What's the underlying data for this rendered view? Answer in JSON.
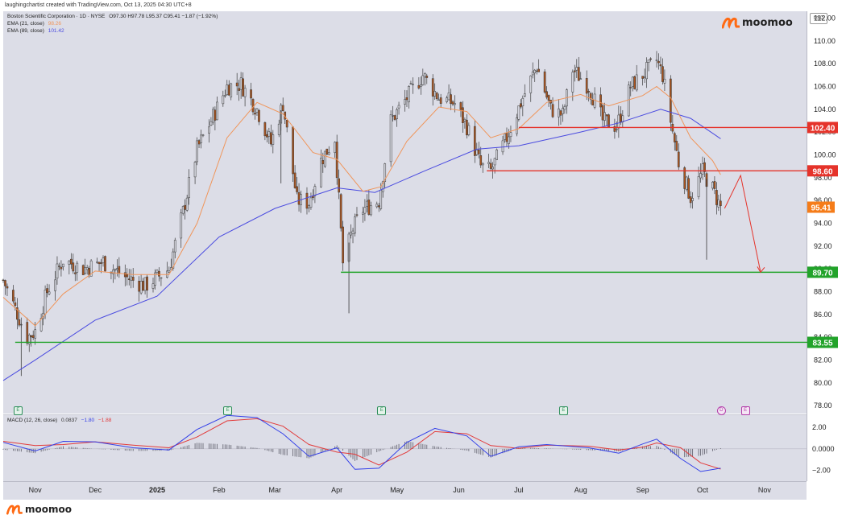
{
  "credit": "laughingchartist created with TradingView.com, Oct 13, 2025 04:30 UTC+8",
  "legend": {
    "symbol": "Boston Scientific Corporation · 1D · NYSE",
    "ohlc": "O97.30 H97.78 L95.37 C95.41 −1.87 (−1.92%)",
    "ema21_label": "EMA (21, close)",
    "ema21_value": "98.26",
    "ema89_label": "EMA (89, close)",
    "ema89_value": "101.42",
    "macd_label": "MACD (12, 26, close)",
    "macd_hist_value": "0.0837",
    "macd_value": "−1.80",
    "macd_signal_value": "−1.88"
  },
  "brand": {
    "name": "moomoo"
  },
  "price_axis": {
    "unit": "USD"
  },
  "colors": {
    "up": "#d6d7e0",
    "down": "#a8541f",
    "wick": "#3a3a3a",
    "ema21": "#f0955a",
    "ema89": "#4a4be0",
    "resistance": "#e5332a",
    "support": "#22a32a",
    "current_price": "#f57c19",
    "macd": "#3440e8",
    "signal": "#e23a3a"
  },
  "events": [
    {
      "label": "E",
      "type": "earnings",
      "x": "2024-10-23"
    },
    {
      "label": "E",
      "type": "earnings",
      "x": "2025-02-05"
    },
    {
      "label": "E",
      "type": "earnings",
      "x": "2025-04-23"
    },
    {
      "label": "E",
      "type": "earnings",
      "x": "2025-07-23"
    },
    {
      "label": "D",
      "type": "dividend",
      "x": "2025-10-10"
    },
    {
      "label": "E",
      "type": "earnings",
      "x": "2025-10-22"
    }
  ],
  "chart_data": [
    {
      "type": "candlestick",
      "title": "Boston Scientific Corporation · 1D · NYSE",
      "xlabel": "",
      "ylabel": "",
      "x_range": [
        "2024-10-16",
        "2025-11-22"
      ],
      "ylim": [
        77.3,
        112.6
      ],
      "y_ticks": [
        "78.00",
        "80.00",
        "82.00",
        "84.00",
        "86.00",
        "88.00",
        "90.00",
        "92.00",
        "94.00",
        "96.00",
        "98.00",
        "100.00",
        "102.00",
        "104.00",
        "106.00",
        "108.00",
        "110.00",
        "112.00"
      ],
      "x_ticks": [
        {
          "label": "Nov",
          "date": "2024-11-01"
        },
        {
          "label": "Dec",
          "date": "2024-12-01"
        },
        {
          "label": "2025",
          "date": "2025-01-01"
        },
        {
          "label": "Feb",
          "date": "2025-02-01"
        },
        {
          "label": "Mar",
          "date": "2025-03-01"
        },
        {
          "label": "Apr",
          "date": "2025-04-01"
        },
        {
          "label": "May",
          "date": "2025-05-01"
        },
        {
          "label": "Jun",
          "date": "2025-06-01"
        },
        {
          "label": "Jul",
          "date": "2025-07-01"
        },
        {
          "label": "Aug",
          "date": "2025-08-01"
        },
        {
          "label": "Sep",
          "date": "2025-09-01"
        },
        {
          "label": "Oct",
          "date": "2025-10-01"
        },
        {
          "label": "Nov",
          "date": "2025-11-01"
        }
      ],
      "price_path": [
        [
          "2024-10-16",
          89
        ],
        [
          "2024-10-22",
          86.5
        ],
        [
          "2024-10-28",
          84
        ],
        [
          "2024-11-01",
          84.5
        ],
        [
          "2024-11-07",
          88
        ],
        [
          "2024-11-15",
          90.8
        ],
        [
          "2024-11-25",
          90
        ],
        [
          "2024-12-05",
          90.6
        ],
        [
          "2024-12-16",
          89.3
        ],
        [
          "2024-12-26",
          88.5
        ],
        [
          "2025-01-07",
          90
        ],
        [
          "2025-01-14",
          95
        ],
        [
          "2025-01-21",
          100.5
        ],
        [
          "2025-01-28",
          103
        ],
        [
          "2025-02-05",
          106
        ],
        [
          "2025-02-12",
          106.2
        ],
        [
          "2025-02-20",
          104
        ],
        [
          "2025-02-27",
          101
        ],
        [
          "2025-03-05",
          104.5
        ],
        [
          "2025-03-12",
          96
        ],
        [
          "2025-03-18",
          95.8
        ],
        [
          "2025-03-24",
          99.5
        ],
        [
          "2025-03-31",
          101.5
        ],
        [
          "2025-04-04",
          90.5
        ],
        [
          "2025-04-09",
          93.5
        ],
        [
          "2025-04-14",
          95.2
        ],
        [
          "2025-04-22",
          96
        ],
        [
          "2025-04-28",
          103
        ],
        [
          "2025-05-06",
          105
        ],
        [
          "2025-05-14",
          107
        ],
        [
          "2025-05-22",
          105
        ],
        [
          "2025-05-30",
          104.5
        ],
        [
          "2025-06-05",
          102.5
        ],
        [
          "2025-06-12",
          99
        ],
        [
          "2025-06-17",
          98.6
        ],
        [
          "2025-06-25",
          101.5
        ],
        [
          "2025-07-03",
          105
        ],
        [
          "2025-07-10",
          107.8
        ],
        [
          "2025-07-17",
          104
        ],
        [
          "2025-07-23",
          103.5
        ],
        [
          "2025-07-28",
          107.5
        ],
        [
          "2025-08-05",
          106
        ],
        [
          "2025-08-12",
          103
        ],
        [
          "2025-08-19",
          102.5
        ],
        [
          "2025-08-26",
          106
        ],
        [
          "2025-09-02",
          107.2
        ],
        [
          "2025-09-08",
          108.3
        ],
        [
          "2025-09-11",
          107
        ],
        [
          "2025-09-15",
          103
        ],
        [
          "2025-09-19",
          99.3
        ],
        [
          "2025-09-25",
          96.3
        ],
        [
          "2025-10-01",
          98.5
        ],
        [
          "2025-10-06",
          97
        ],
        [
          "2025-10-10",
          95.41
        ]
      ],
      "ema21": [
        [
          "2024-10-16",
          87.5
        ],
        [
          "2024-11-01",
          85
        ],
        [
          "2024-11-15",
          87.8
        ],
        [
          "2024-12-01",
          89.8
        ],
        [
          "2024-12-20",
          89.5
        ],
        [
          "2025-01-07",
          89.5
        ],
        [
          "2025-01-21",
          94
        ],
        [
          "2025-02-05",
          101.5
        ],
        [
          "2025-02-20",
          104.6
        ],
        [
          "2025-03-05",
          103.6
        ],
        [
          "2025-03-20",
          100.2
        ],
        [
          "2025-04-01",
          99.6
        ],
        [
          "2025-04-14",
          96.8
        ],
        [
          "2025-04-23",
          97.2
        ],
        [
          "2025-05-06",
          101.2
        ],
        [
          "2025-05-22",
          104.2
        ],
        [
          "2025-06-05",
          103.8
        ],
        [
          "2025-06-17",
          101.5
        ],
        [
          "2025-07-01",
          102.3
        ],
        [
          "2025-07-15",
          104.6
        ],
        [
          "2025-08-01",
          105.3
        ],
        [
          "2025-08-15",
          104.3
        ],
        [
          "2025-09-01",
          105.2
        ],
        [
          "2025-09-08",
          106
        ],
        [
          "2025-09-15",
          105
        ],
        [
          "2025-09-25",
          101.5
        ],
        [
          "2025-10-06",
          99.5
        ],
        [
          "2025-10-10",
          98.26
        ]
      ],
      "ema89": [
        [
          "2024-10-16",
          80.2
        ],
        [
          "2024-11-01",
          82
        ],
        [
          "2024-12-01",
          85.5
        ],
        [
          "2025-01-01",
          87.6
        ],
        [
          "2025-02-01",
          92.8
        ],
        [
          "2025-03-01",
          95.3
        ],
        [
          "2025-04-01",
          97.1
        ],
        [
          "2025-04-20",
          96.7
        ],
        [
          "2025-05-15",
          98.6
        ],
        [
          "2025-06-10",
          100.5
        ],
        [
          "2025-07-01",
          100.8
        ],
        [
          "2025-08-01",
          102
        ],
        [
          "2025-08-20",
          102.8
        ],
        [
          "2025-09-10",
          104
        ],
        [
          "2025-09-25",
          103.2
        ],
        [
          "2025-10-10",
          101.42
        ]
      ],
      "levels": [
        {
          "label": "102.40",
          "value": 102.4,
          "from": "2025-07-01",
          "kind": "resistance"
        },
        {
          "label": "98.60",
          "value": 98.6,
          "from": "2025-06-15",
          "kind": "resistance"
        },
        {
          "label": "89.70",
          "value": 89.7,
          "from": "2025-04-03",
          "kind": "support"
        },
        {
          "label": "83.55",
          "value": 83.55,
          "from": "2024-10-22",
          "kind": "support"
        }
      ],
      "current_price": {
        "label": "95.41",
        "value": 95.41
      },
      "projection": [
        [
          "2025-10-12",
          95.3
        ],
        [
          "2025-10-20",
          98.2
        ],
        [
          "2025-10-30",
          89.7
        ]
      ]
    },
    {
      "type": "line",
      "title": "MACD (12, 26, close)",
      "ylim": [
        -3,
        3.2
      ],
      "y_ticks": [
        "2.00",
        "0.0000",
        "−2.00"
      ],
      "series": [
        {
          "name": "MACD",
          "values": [
            [
              "2024-10-16",
              0.6
            ],
            [
              "2024-11-01",
              -0.2
            ],
            [
              "2024-11-15",
              0.7
            ],
            [
              "2024-12-01",
              0.65
            ],
            [
              "2024-12-20",
              0.1
            ],
            [
              "2025-01-07",
              -0.1
            ],
            [
              "2025-01-21",
              1.8
            ],
            [
              "2025-02-05",
              3.1
            ],
            [
              "2025-02-20",
              2.9
            ],
            [
              "2025-03-05",
              1.4
            ],
            [
              "2025-03-18",
              -0.7
            ],
            [
              "2025-04-01",
              0.1
            ],
            [
              "2025-04-10",
              -1.9
            ],
            [
              "2025-04-22",
              -1.8
            ],
            [
              "2025-05-06",
              0.6
            ],
            [
              "2025-05-20",
              1.9
            ],
            [
              "2025-06-05",
              1.2
            ],
            [
              "2025-06-17",
              -0.7
            ],
            [
              "2025-07-01",
              0.2
            ],
            [
              "2025-07-15",
              0.4
            ],
            [
              "2025-08-05",
              0.1
            ],
            [
              "2025-08-20",
              -0.4
            ],
            [
              "2025-09-01",
              0.45
            ],
            [
              "2025-09-08",
              0.9
            ],
            [
              "2025-09-20",
              -0.9
            ],
            [
              "2025-09-30",
              -2.1
            ],
            [
              "2025-10-10",
              -1.8
            ]
          ]
        },
        {
          "name": "Signal",
          "values": [
            [
              "2024-10-16",
              0.7
            ],
            [
              "2024-11-01",
              0.3
            ],
            [
              "2024-11-15",
              0.4
            ],
            [
              "2024-12-01",
              0.65
            ],
            [
              "2024-12-20",
              0.35
            ],
            [
              "2025-01-07",
              0.1
            ],
            [
              "2025-01-21",
              1.1
            ],
            [
              "2025-02-05",
              2.6
            ],
            [
              "2025-02-20",
              2.8
            ],
            [
              "2025-03-05",
              2.1
            ],
            [
              "2025-03-18",
              0.4
            ],
            [
              "2025-04-01",
              -0.3
            ],
            [
              "2025-04-10",
              -0.5
            ],
            [
              "2025-04-22",
              -1.5
            ],
            [
              "2025-05-06",
              -0.3
            ],
            [
              "2025-05-20",
              1.6
            ],
            [
              "2025-06-05",
              1.4
            ],
            [
              "2025-06-17",
              0.3
            ],
            [
              "2025-07-01",
              0.05
            ],
            [
              "2025-07-15",
              0.35
            ],
            [
              "2025-08-05",
              0.25
            ],
            [
              "2025-08-20",
              -0.1
            ],
            [
              "2025-09-01",
              0.15
            ],
            [
              "2025-09-08",
              0.55
            ],
            [
              "2025-09-20",
              0.1
            ],
            [
              "2025-09-30",
              -1.3
            ],
            [
              "2025-10-10",
              -1.88
            ]
          ]
        }
      ]
    }
  ]
}
